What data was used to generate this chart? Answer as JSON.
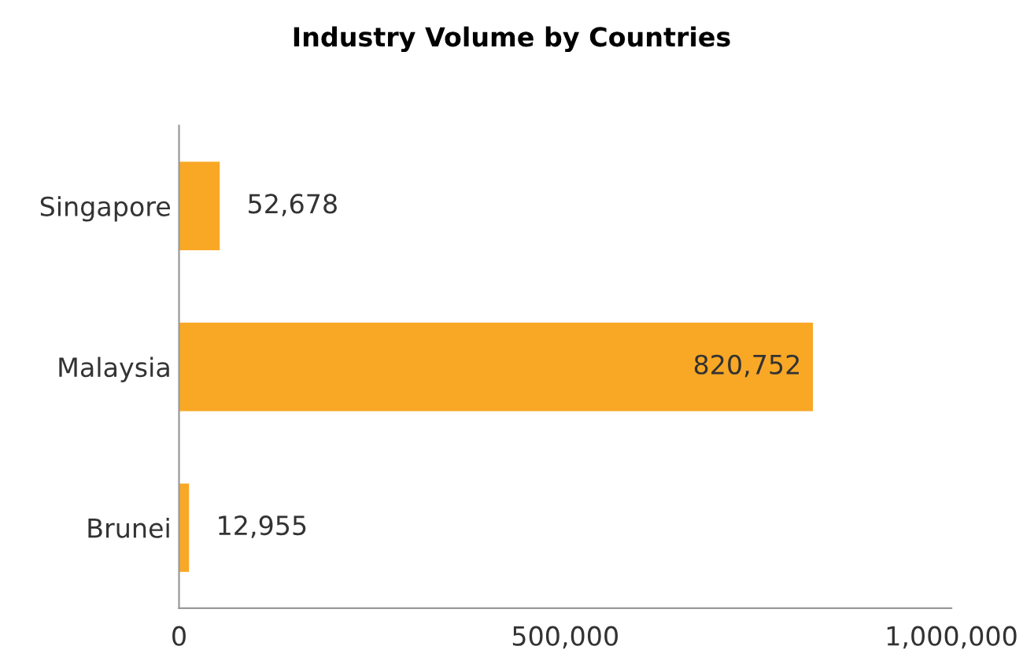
{
  "chart_data": {
    "type": "bar",
    "orientation": "horizontal",
    "title": "Industry Volume by Countries",
    "categories": [
      "Singapore",
      "Malaysia",
      "Brunei"
    ],
    "values": [
      52678,
      820752,
      12955
    ],
    "value_labels": [
      "52,678",
      "820,752",
      "12,955"
    ],
    "color": "#f9a825",
    "xlim": [
      0,
      1000000
    ],
    "xticks": [
      0,
      {
        "value": 500000,
        "label": "500,000"
      },
      {
        "value": 1000000,
        "label": "1,000,000"
      }
    ],
    "grid": false,
    "legend": false
  }
}
